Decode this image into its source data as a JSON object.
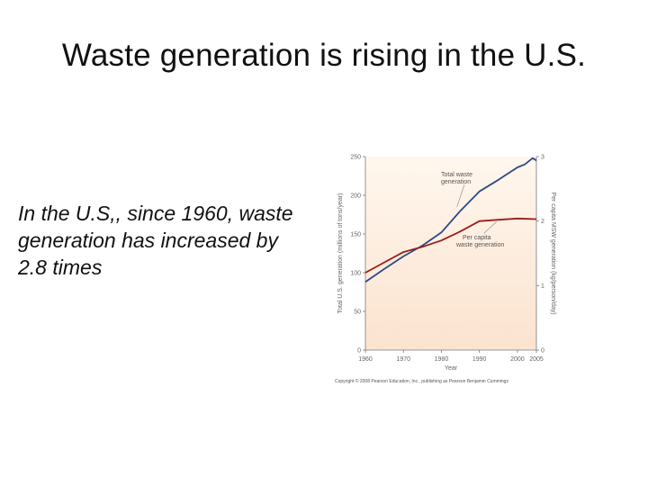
{
  "slide": {
    "title": "Waste generation is rising in the U.S.",
    "body": "In the U.S,, since 1960, waste generation has increased by 2.8 times"
  },
  "chart_data": {
    "type": "line",
    "xlabel": "Year",
    "ylabel": "Total U.S. generation (millions of tons/year)",
    "ylabel_right": "Per capita MSW generation (kg/person/day)",
    "x_ticks": [
      "1960",
      "1970",
      "1980",
      "1990",
      "2000",
      "2005"
    ],
    "xlim": [
      1960,
      2005
    ],
    "ylim": [
      0,
      250
    ],
    "y_ticks": [
      0,
      50,
      100,
      150,
      200,
      250
    ],
    "ylim_right": [
      0,
      3
    ],
    "y_ticks_right": [
      0,
      1,
      2,
      3
    ],
    "series": [
      {
        "name": "Total waste generation",
        "axis": "left",
        "color": "#2d4a86",
        "x": [
          1960,
          1965,
          1970,
          1975,
          1980,
          1985,
          1990,
          1995,
          2000,
          2002,
          2004,
          2005
        ],
        "values": [
          88,
          105,
          121,
          135,
          152,
          180,
          205,
          220,
          236,
          240,
          248,
          245
        ]
      },
      {
        "name": "Per capita waste generation",
        "axis": "right",
        "color": "#9b1c1c",
        "x": [
          1960,
          1965,
          1970,
          1975,
          1980,
          1985,
          1990,
          1995,
          2000,
          2005
        ],
        "values": [
          1.2,
          1.36,
          1.52,
          1.6,
          1.7,
          1.84,
          2.0,
          2.02,
          2.04,
          2.03
        ]
      }
    ],
    "annotations": [
      {
        "text": "Total waste generation",
        "series": 0
      },
      {
        "text": "Per capita waste generation",
        "series": 1
      }
    ],
    "credit": "Copyright © 2008 Pearson Education, Inc., publishing as Pearson Benjamin Cummings",
    "background": "#fbe9d8",
    "grid": false,
    "legend": "none"
  }
}
